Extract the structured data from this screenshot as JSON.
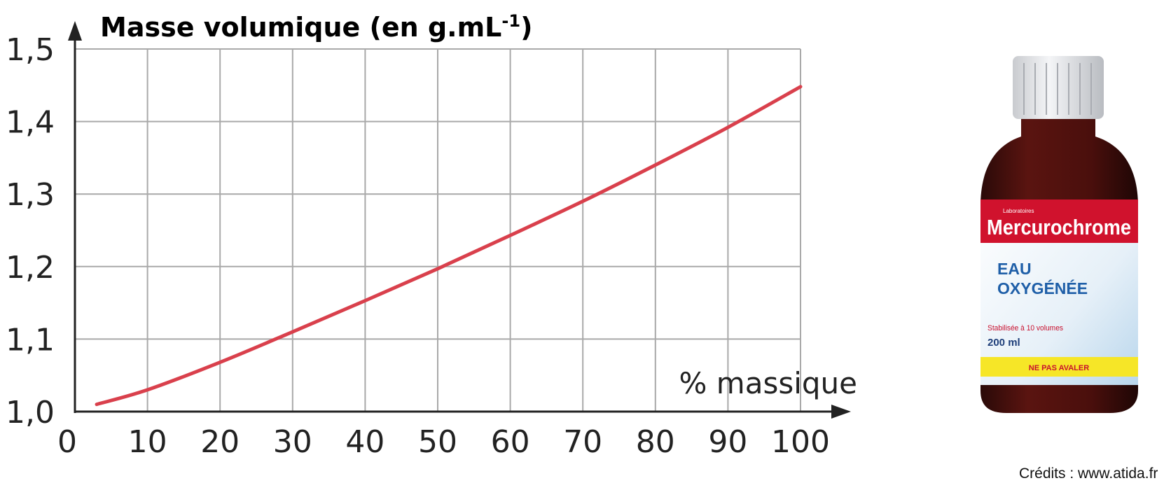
{
  "chart_data": {
    "type": "line",
    "title": "Masse volumique (en g.mL",
    "title_superscript": "-1",
    "title_suffix": ")",
    "xlabel": "% massique",
    "ylabel": "",
    "xlim": [
      0,
      100
    ],
    "ylim": [
      1.0,
      1.5
    ],
    "grid": true,
    "x_ticks": [
      "0",
      "10",
      "20",
      "30",
      "40",
      "50",
      "60",
      "70",
      "80",
      "90",
      "100"
    ],
    "y_ticks": [
      "1,0",
      "1,1",
      "1,2",
      "1,3",
      "1,4",
      "1,5"
    ],
    "series": [
      {
        "color": "#d9404c",
        "x": [
          3,
          10,
          20,
          30,
          40,
          50,
          60,
          70,
          80,
          90,
          100
        ],
        "y": [
          1.01,
          1.03,
          1.068,
          1.11,
          1.153,
          1.197,
          1.243,
          1.29,
          1.34,
          1.392,
          1.448
        ]
      }
    ]
  },
  "product": {
    "brand": "Mercurochrome",
    "lab": "Laboratoires",
    "name_line1": "EAU",
    "name_line2": "OXYGÉNÉE",
    "stabilisation": "Stabilisée à 10 volumes",
    "volume": "200 ml",
    "warning": "NE PAS AVALER"
  },
  "credits": "Crédits : www.atida.fr"
}
